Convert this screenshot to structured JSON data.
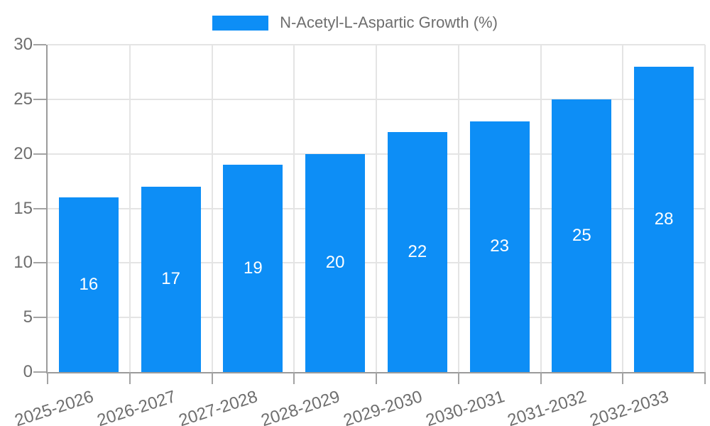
{
  "legend": {
    "items": [
      {
        "label": "N-Acetyl-L-Aspartic Growth (%)",
        "color": "#0d8ef6"
      }
    ],
    "position": "top-center"
  },
  "colors": {
    "bar": "#0d8ef6",
    "bar_label_text": "#ffffff",
    "grid_line": "#e4e4e4",
    "axis_line": "#9b9b9b",
    "tick_mark": "#a3a3a3",
    "axis_text": "#6e6e6e",
    "legend_text": "#6e6e6e",
    "background": "#ffffff"
  },
  "chart_data": {
    "type": "bar",
    "categories": [
      "2025-2026",
      "2026-2027",
      "2027-2028",
      "2028-2029",
      "2029-2030",
      "2030-2031",
      "2031-2032",
      "2032-2033"
    ],
    "series": [
      {
        "name": "N-Acetyl-L-Aspartic Growth (%)",
        "values": [
          16,
          17,
          19,
          20,
          22,
          23,
          25,
          28
        ]
      }
    ],
    "title": "",
    "xlabel": "",
    "ylabel": "",
    "ylim": [
      0,
      30
    ],
    "yticks": [
      0,
      5,
      10,
      15,
      20,
      25,
      30
    ],
    "grid": true,
    "legend_position": "top-center",
    "value_labels": "inside-center",
    "x_tick_rotation_deg": -18
  }
}
